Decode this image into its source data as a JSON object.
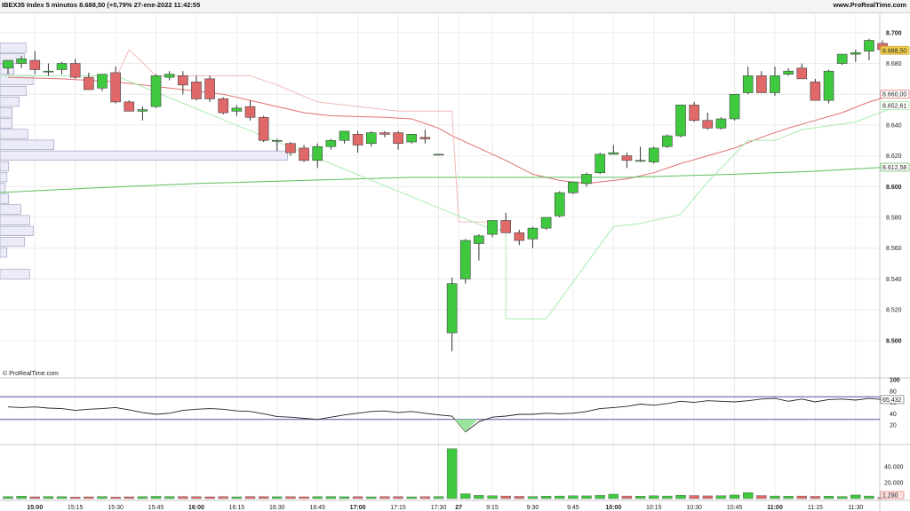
{
  "header": {
    "title": "IBEX35 Index 5 minutos 8.688,50 (+0,79% 27-ene-2022 11:42:55",
    "site": "www.ProRealTime.com",
    "watermark": "© ProRealTime.com"
  },
  "colors": {
    "up": "#3ec93e",
    "down": "#e06868",
    "ma_red": "#e07070",
    "ma_green": "#5cbf5c",
    "stop_pink": "#f4b8b8",
    "stop_lightgreen": "#a8ecae",
    "profile_fill": "#ececf8",
    "profile_stroke": "#8080b0",
    "price_badge": "#f3cf4f"
  },
  "chart_data": {
    "type": "candlestick",
    "instrument": "IBEX35 Index",
    "timeframe": "5 minutos",
    "time_labels": [
      {
        "label": "15:00",
        "bar": 2,
        "bold": true
      },
      {
        "label": "15:15",
        "bar": 5
      },
      {
        "label": "15:30",
        "bar": 8
      },
      {
        "label": "15:45",
        "bar": 11
      },
      {
        "label": "16:00",
        "bar": 14,
        "bold": true
      },
      {
        "label": "16:15",
        "bar": 17
      },
      {
        "label": "16:30",
        "bar": 20
      },
      {
        "label": "16:45",
        "bar": 23
      },
      {
        "label": "17:00",
        "bar": 26,
        "bold": true
      },
      {
        "label": "17:15",
        "bar": 29
      },
      {
        "label": "17:30",
        "bar": 32
      },
      {
        "label": "27",
        "bar": 33.5,
        "bold": true
      },
      {
        "label": "9:15",
        "bar": 36
      },
      {
        "label": "9:30",
        "bar": 39
      },
      {
        "label": "9:45",
        "bar": 42
      },
      {
        "label": "10:00",
        "bar": 45,
        "bold": true
      },
      {
        "label": "10:15",
        "bar": 48
      },
      {
        "label": "10:30",
        "bar": 51
      },
      {
        "label": "10:45",
        "bar": 54
      },
      {
        "label": "11:00",
        "bar": 57,
        "bold": true
      },
      {
        "label": "11:15",
        "bar": 60
      },
      {
        "label": "11:30",
        "bar": 63
      }
    ],
    "price_axis": {
      "ticks": [
        8500,
        8520,
        8540,
        8560,
        8580,
        8600,
        8620,
        8640,
        8660,
        8680,
        8700
      ],
      "tick_labels": [
        "8.500",
        "8.520",
        "8.540",
        "8.560",
        "8.580",
        "8.600",
        "8.620",
        "8.640",
        "8.660",
        "8.680",
        "8.700"
      ],
      "bold_ticks": [
        "8.500",
        "8.600",
        "8.700"
      ],
      "ylim": [
        8478,
        8712
      ]
    },
    "candles": [
      {
        "o": 8677,
        "h": 8682,
        "l": 8673,
        "c": 8682
      },
      {
        "o": 8680,
        "h": 8685,
        "l": 8677,
        "c": 8683
      },
      {
        "o": 8682,
        "h": 8688,
        "l": 8673,
        "c": 8676
      },
      {
        "o": 8675,
        "h": 8680,
        "l": 8672,
        "c": 8675
      },
      {
        "o": 8676,
        "h": 8681,
        "l": 8673,
        "c": 8680
      },
      {
        "o": 8680,
        "h": 8683,
        "l": 8670,
        "c": 8671
      },
      {
        "o": 8671,
        "h": 8674,
        "l": 8663,
        "c": 8663
      },
      {
        "o": 8664,
        "h": 8673,
        "l": 8662,
        "c": 8673
      },
      {
        "o": 8674,
        "h": 8678,
        "l": 8654,
        "c": 8655
      },
      {
        "o": 8655,
        "h": 8656,
        "l": 8649,
        "c": 8649
      },
      {
        "o": 8649,
        "h": 8652,
        "l": 8643,
        "c": 8650
      },
      {
        "o": 8652,
        "h": 8673,
        "l": 8651,
        "c": 8672
      },
      {
        "o": 8671,
        "h": 8675,
        "l": 8669,
        "c": 8673
      },
      {
        "o": 8672,
        "h": 8675,
        "l": 8660,
        "c": 8666
      },
      {
        "o": 8668,
        "h": 8672,
        "l": 8656,
        "c": 8657
      },
      {
        "o": 8670,
        "h": 8672,
        "l": 8655,
        "c": 8657
      },
      {
        "o": 8657,
        "h": 8658,
        "l": 8647,
        "c": 8648
      },
      {
        "o": 8649,
        "h": 8653,
        "l": 8646,
        "c": 8651
      },
      {
        "o": 8652,
        "h": 8656,
        "l": 8643,
        "c": 8645
      },
      {
        "o": 8645,
        "h": 8646,
        "l": 8629,
        "c": 8630
      },
      {
        "o": 8630,
        "h": 8631,
        "l": 8623,
        "c": 8630
      },
      {
        "o": 8628,
        "h": 8629,
        "l": 8620,
        "c": 8622
      },
      {
        "o": 8625,
        "h": 8627,
        "l": 8616,
        "c": 8617
      },
      {
        "o": 8617,
        "h": 8628,
        "l": 8612,
        "c": 8626
      },
      {
        "o": 8626,
        "h": 8631,
        "l": 8624,
        "c": 8630
      },
      {
        "o": 8630,
        "h": 8636,
        "l": 8628,
        "c": 8636
      },
      {
        "o": 8634,
        "h": 8636,
        "l": 8622,
        "c": 8627
      },
      {
        "o": 8628,
        "h": 8636,
        "l": 8626,
        "c": 8635
      },
      {
        "o": 8635,
        "h": 8636,
        "l": 8632,
        "c": 8634
      },
      {
        "o": 8635,
        "h": 8636,
        "l": 8624,
        "c": 8628
      },
      {
        "o": 8629,
        "h": 8634,
        "l": 8628,
        "c": 8634
      },
      {
        "o": 8632,
        "h": 8637,
        "l": 8628,
        "c": 8631
      },
      {
        "o": 8621,
        "h": 8621,
        "l": 8621,
        "c": 8621
      },
      {
        "o": 8505,
        "h": 8541,
        "l": 8493,
        "c": 8537
      },
      {
        "o": 8540,
        "h": 8566,
        "l": 8537,
        "c": 8565
      },
      {
        "o": 8563,
        "h": 8569,
        "l": 8552,
        "c": 8568
      },
      {
        "o": 8569,
        "h": 8578,
        "l": 8567,
        "c": 8578
      },
      {
        "o": 8578,
        "h": 8583,
        "l": 8570,
        "c": 8570
      },
      {
        "o": 8570,
        "h": 8572,
        "l": 8562,
        "c": 8565
      },
      {
        "o": 8566,
        "h": 8574,
        "l": 8560,
        "c": 8573
      },
      {
        "o": 8573,
        "h": 8580,
        "l": 8572,
        "c": 8580
      },
      {
        "o": 8581,
        "h": 8597,
        "l": 8580,
        "c": 8596
      },
      {
        "o": 8596,
        "h": 8603,
        "l": 8595,
        "c": 8603
      },
      {
        "o": 8602,
        "h": 8609,
        "l": 8600,
        "c": 8608
      },
      {
        "o": 8609,
        "h": 8622,
        "l": 8608,
        "c": 8621
      },
      {
        "o": 8621,
        "h": 8627,
        "l": 8621,
        "c": 8622
      },
      {
        "o": 8620,
        "h": 8622,
        "l": 8612,
        "c": 8617
      },
      {
        "o": 8617,
        "h": 8626,
        "l": 8616,
        "c": 8617
      },
      {
        "o": 8616,
        "h": 8626,
        "l": 8615,
        "c": 8625
      },
      {
        "o": 8626,
        "h": 8634,
        "l": 8625,
        "c": 8633
      },
      {
        "o": 8633,
        "h": 8653,
        "l": 8632,
        "c": 8653
      },
      {
        "o": 8653,
        "h": 8655,
        "l": 8642,
        "c": 8643
      },
      {
        "o": 8643,
        "h": 8648,
        "l": 8637,
        "c": 8638
      },
      {
        "o": 8638,
        "h": 8645,
        "l": 8637,
        "c": 8644
      },
      {
        "o": 8644,
        "h": 8660,
        "l": 8643,
        "c": 8660
      },
      {
        "o": 8661,
        "h": 8678,
        "l": 8660,
        "c": 8672
      },
      {
        "o": 8672,
        "h": 8675,
        "l": 8661,
        "c": 8661
      },
      {
        "o": 8661,
        "h": 8678,
        "l": 8659,
        "c": 8672
      },
      {
        "o": 8673,
        "h": 8677,
        "l": 8672,
        "c": 8675
      },
      {
        "o": 8677,
        "h": 8680,
        "l": 8670,
        "c": 8670
      },
      {
        "o": 8668,
        "h": 8670,
        "l": 8656,
        "c": 8656
      },
      {
        "o": 8656,
        "h": 8676,
        "l": 8654,
        "c": 8675
      },
      {
        "o": 8680,
        "h": 8686,
        "l": 8679,
        "c": 8686
      },
      {
        "o": 8686,
        "h": 8689,
        "l": 8681,
        "c": 8687
      },
      {
        "o": 8688,
        "h": 8696,
        "l": 8682,
        "c": 8695
      },
      {
        "o": 8693,
        "h": 8695,
        "l": 8688,
        "c": 8689
      }
    ],
    "series": [
      {
        "name": "MA",
        "color": "#e07070",
        "points": [
          [
            0,
            8671
          ],
          [
            4,
            8670
          ],
          [
            8,
            8668
          ],
          [
            12,
            8664
          ],
          [
            16,
            8660
          ],
          [
            20,
            8652
          ],
          [
            22,
            8648
          ],
          [
            24,
            8646
          ],
          [
            28,
            8645
          ],
          [
            30,
            8644
          ],
          [
            32,
            8638
          ],
          [
            33,
            8633
          ],
          [
            35,
            8625
          ],
          [
            37,
            8617
          ],
          [
            39,
            8608
          ],
          [
            41,
            8604
          ],
          [
            43,
            8602
          ],
          [
            46,
            8605
          ],
          [
            48,
            8609
          ],
          [
            50,
            8615
          ],
          [
            52,
            8620
          ],
          [
            54,
            8625
          ],
          [
            56,
            8632
          ],
          [
            58,
            8638
          ],
          [
            60,
            8643
          ],
          [
            62,
            8648
          ],
          [
            64,
            8655
          ],
          [
            66,
            8660
          ]
        ]
      },
      {
        "name": "MA long",
        "color": "#5cbf5c",
        "points": [
          [
            -1,
            8596
          ],
          [
            6,
            8599
          ],
          [
            14,
            8602
          ],
          [
            22,
            8604
          ],
          [
            30,
            8606
          ],
          [
            38,
            8606
          ],
          [
            46,
            8606
          ],
          [
            54,
            8608
          ],
          [
            60,
            8610
          ],
          [
            66,
            8613
          ]
        ]
      },
      {
        "name": "Stop short",
        "color": "#f4b8b8",
        "points": [
          [
            8,
            8670
          ],
          [
            9,
            8689
          ],
          [
            11,
            8672
          ],
          [
            18,
            8672
          ],
          [
            20,
            8666
          ],
          [
            23,
            8655
          ],
          [
            29,
            8649
          ],
          [
            33,
            8649
          ],
          [
            33.5,
            8577
          ],
          [
            36,
            8577
          ]
        ]
      },
      {
        "name": "Stop long",
        "color": "#a8ecae",
        "points": [
          [
            -1,
            8672
          ],
          [
            8,
            8672
          ],
          [
            36,
            8572
          ],
          [
            37,
            8572
          ],
          [
            37,
            8514
          ],
          [
            40,
            8514
          ],
          [
            45,
            8574
          ],
          [
            47,
            8576
          ],
          [
            50,
            8582
          ],
          [
            52,
            8603
          ],
          [
            55,
            8630
          ],
          [
            57,
            8630
          ],
          [
            59,
            8637
          ],
          [
            63,
            8642
          ],
          [
            66,
            8652
          ]
        ]
      }
    ],
    "price_labels": [
      {
        "text": "8.688,50",
        "value": 8688.5,
        "role": "last"
      },
      {
        "text": "8.660,00",
        "value": 8660.0,
        "role": "ma"
      },
      {
        "text": "8.652,61",
        "value": 8652.6,
        "role": "stop"
      },
      {
        "text": "8.612,58",
        "value": 8612.6,
        "role": "ma_long"
      }
    ],
    "volume_profile": [
      {
        "price": 8690,
        "len": 30
      },
      {
        "price": 8683,
        "len": 28
      },
      {
        "price": 8676,
        "len": 16
      },
      {
        "price": 8669,
        "len": 38
      },
      {
        "price": 8662,
        "len": 30
      },
      {
        "price": 8655,
        "len": 22
      },
      {
        "price": 8648,
        "len": 14
      },
      {
        "price": 8641,
        "len": 14
      },
      {
        "price": 8634,
        "len": 32
      },
      {
        "price": 8627,
        "len": 62
      },
      {
        "price": 8620,
        "len": 330
      },
      {
        "price": 8613,
        "len": 10
      },
      {
        "price": 8606,
        "len": 8
      },
      {
        "price": 8599,
        "len": 6
      },
      {
        "price": 8592,
        "len": 10
      },
      {
        "price": 8585,
        "len": 24
      },
      {
        "price": 8578,
        "len": 34
      },
      {
        "price": 8571,
        "len": 38
      },
      {
        "price": 8564,
        "len": 28
      },
      {
        "price": 8557,
        "len": 8
      },
      {
        "price": 8543,
        "len": 34
      }
    ],
    "oscillator": {
      "ticks": [
        100,
        80,
        60,
        40,
        20
      ],
      "ylim": [
        0,
        100
      ],
      "levels": [
        70,
        30
      ],
      "last_label": "65,432",
      "values": [
        52,
        51,
        52,
        50,
        49,
        46,
        48,
        49,
        51,
        47,
        42,
        39,
        41,
        46,
        48,
        49,
        48,
        45,
        44,
        40,
        35,
        34,
        32,
        30,
        34,
        38,
        41,
        44,
        45,
        42,
        44,
        41,
        38,
        36,
        8,
        26,
        34,
        36,
        39,
        39,
        41,
        40,
        41,
        44,
        49,
        51,
        53,
        57,
        55,
        58,
        62,
        60,
        63,
        62,
        61,
        63,
        66,
        67,
        62,
        66,
        61,
        65,
        66,
        64,
        67,
        65
      ]
    },
    "volume": {
      "tick_labels": [
        "40.000",
        "20.000"
      ],
      "ticks": [
        40000,
        20000
      ],
      "ylim": [
        0,
        64000
      ],
      "last_label": "1.290",
      "values": [
        2500,
        3000,
        2200,
        2600,
        2400,
        2000,
        2200,
        2600,
        2000,
        2200,
        2400,
        2800,
        2500,
        2600,
        2400,
        2200,
        2500,
        2200,
        2600,
        2500,
        2300,
        2400,
        2200,
        2400,
        2600,
        2300,
        2400,
        2200,
        2500,
        2400,
        2200,
        2400,
        2500,
        62000,
        6000,
        4000,
        3500,
        3200,
        2800,
        2600,
        3000,
        3200,
        3500,
        3400,
        4000,
        5500,
        3200,
        3000,
        3500,
        3200,
        4200,
        3800,
        3400,
        3600,
        4500,
        7500,
        3800,
        3200,
        3000,
        3200,
        2800,
        3000,
        2600,
        4500,
        3200,
        1290
      ]
    }
  }
}
